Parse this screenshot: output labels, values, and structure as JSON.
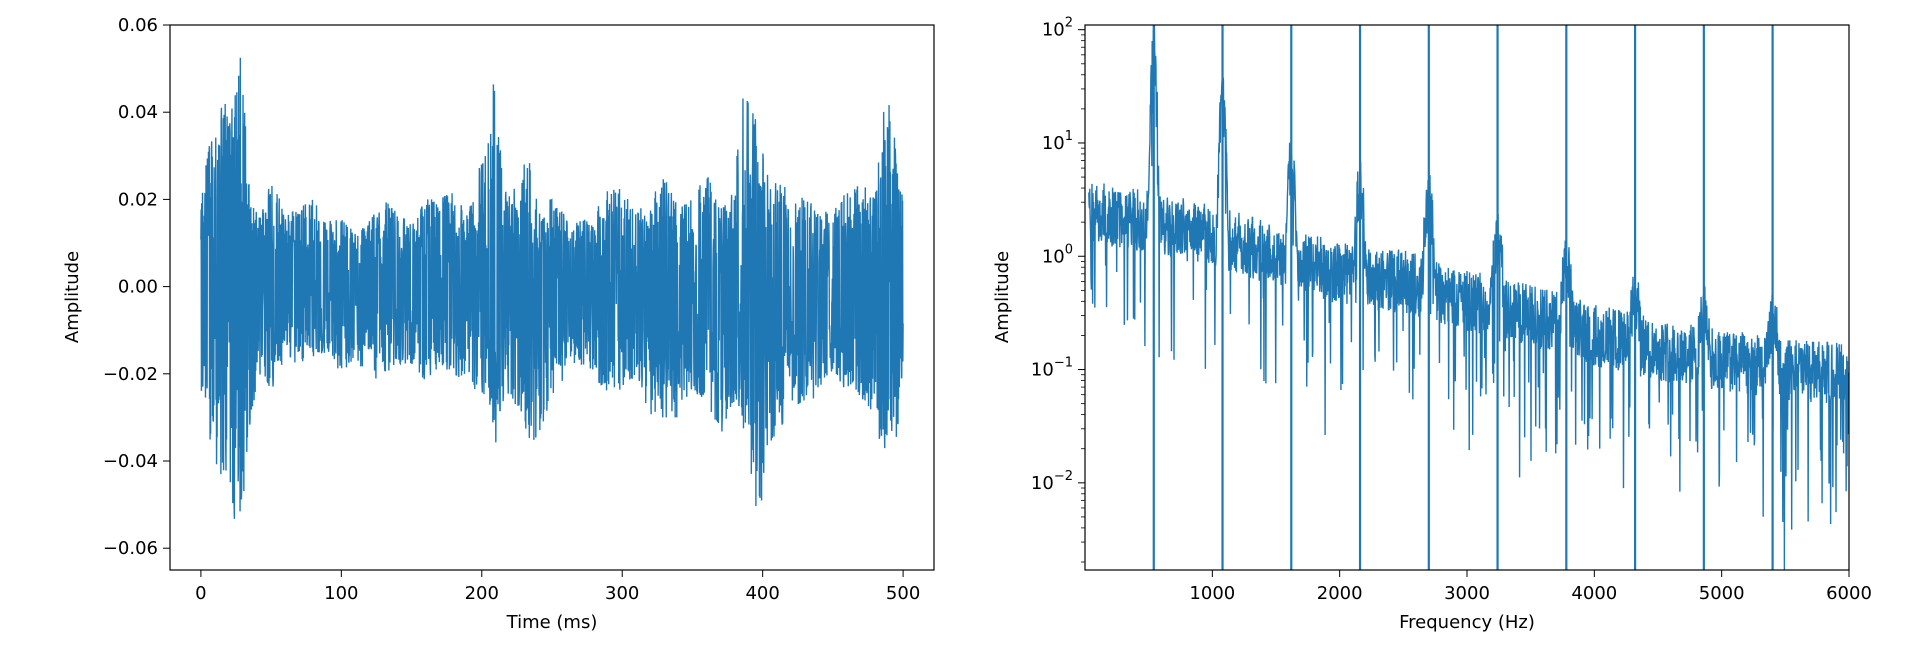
{
  "chart_data": [
    {
      "type": "line",
      "title": "",
      "xlabel": "Time (ms)",
      "ylabel": "Amplitude",
      "xlim": [
        -22,
        522
      ],
      "ylim": [
        -0.065,
        0.06
      ],
      "xticks": [
        0,
        100,
        200,
        300,
        400,
        500
      ],
      "xtick_labels": [
        "0",
        "100",
        "200",
        "300",
        "400",
        "500"
      ],
      "yticks": [
        -0.06,
        -0.04,
        -0.02,
        0.0,
        0.02,
        0.04,
        0.06
      ],
      "ytick_labels": [
        "−0.06",
        "−0.04",
        "−0.02",
        "0.00",
        "0.02",
        "0.04",
        "0.06"
      ],
      "grid": false,
      "color": "#1f77b4",
      "envelope": {
        "x": [
          0,
          5,
          10,
          15,
          20,
          25,
          28,
          30,
          33,
          36,
          40,
          45,
          50,
          60,
          70,
          80,
          90,
          100,
          110,
          120,
          130,
          140,
          150,
          160,
          170,
          180,
          190,
          200,
          205,
          210,
          215,
          220,
          230,
          235,
          240,
          245,
          250,
          260,
          270,
          280,
          290,
          300,
          310,
          320,
          330,
          340,
          350,
          360,
          370,
          380,
          385,
          390,
          395,
          398,
          402,
          410,
          420,
          430,
          440,
          450,
          460,
          470,
          480,
          485,
          490,
          495,
          500
        ],
        "upper": [
          0.022,
          0.03,
          0.042,
          0.044,
          0.045,
          0.05,
          0.054,
          0.046,
          0.03,
          0.02,
          0.018,
          0.02,
          0.026,
          0.016,
          0.018,
          0.02,
          0.015,
          0.016,
          0.012,
          0.015,
          0.02,
          0.017,
          0.014,
          0.02,
          0.02,
          0.022,
          0.016,
          0.03,
          0.036,
          0.052,
          0.03,
          0.02,
          0.028,
          0.03,
          0.018,
          0.02,
          0.02,
          0.016,
          0.015,
          0.016,
          0.024,
          0.022,
          0.017,
          0.02,
          0.025,
          0.018,
          0.02,
          0.026,
          0.018,
          0.022,
          0.045,
          0.042,
          0.04,
          0.036,
          0.026,
          0.024,
          0.022,
          0.02,
          0.018,
          0.017,
          0.022,
          0.024,
          0.02,
          0.04,
          0.042,
          0.032,
          0.02
        ],
        "lower": [
          -0.025,
          -0.035,
          -0.04,
          -0.045,
          -0.05,
          -0.058,
          -0.058,
          -0.05,
          -0.04,
          -0.03,
          -0.022,
          -0.02,
          -0.024,
          -0.016,
          -0.018,
          -0.016,
          -0.015,
          -0.02,
          -0.016,
          -0.022,
          -0.02,
          -0.018,
          -0.018,
          -0.022,
          -0.018,
          -0.02,
          -0.022,
          -0.025,
          -0.026,
          -0.037,
          -0.028,
          -0.024,
          -0.032,
          -0.036,
          -0.034,
          -0.03,
          -0.026,
          -0.02,
          -0.018,
          -0.02,
          -0.026,
          -0.024,
          -0.02,
          -0.03,
          -0.03,
          -0.03,
          -0.024,
          -0.026,
          -0.034,
          -0.026,
          -0.03,
          -0.04,
          -0.05,
          -0.055,
          -0.04,
          -0.034,
          -0.028,
          -0.026,
          -0.026,
          -0.02,
          -0.024,
          -0.026,
          -0.03,
          -0.038,
          -0.039,
          -0.035,
          -0.03
        ]
      }
    },
    {
      "type": "line",
      "title": "",
      "xlabel": "Frequency (Hz)",
      "ylabel": "Amplitude",
      "xlim": [
        0,
        6000
      ],
      "ylim": [
        0.0017,
        110
      ],
      "yscale": "log",
      "xticks": [
        1000,
        2000,
        3000,
        4000,
        5000,
        6000
      ],
      "xtick_labels": [
        "1000",
        "2000",
        "3000",
        "4000",
        "5000",
        "6000"
      ],
      "yticks": [
        0.01,
        0.1,
        1,
        10,
        100
      ],
      "ytick_bases": [
        "10",
        "10",
        "10",
        "10",
        "10"
      ],
      "ytick_exponents": [
        "−2",
        "−1",
        "0",
        "1",
        "2"
      ],
      "grid": false,
      "color": "#1f77b4",
      "vertical_lines": [
        540,
        1080,
        1620,
        2160,
        2700,
        3240,
        3780,
        4320,
        4860,
        5400
      ],
      "harmonic_peaks": [
        {
          "f": 540,
          "amp": 75
        },
        {
          "f": 1080,
          "amp": 22
        },
        {
          "f": 1620,
          "amp": 7
        },
        {
          "f": 2160,
          "amp": 4
        },
        {
          "f": 2700,
          "amp": 3.2
        },
        {
          "f": 3240,
          "amp": 1.5
        },
        {
          "f": 3780,
          "amp": 0.8
        },
        {
          "f": 4320,
          "amp": 0.4
        },
        {
          "f": 4860,
          "amp": 0.3
        },
        {
          "f": 5400,
          "amp": 0.25
        }
      ],
      "baseline": {
        "f": [
          0,
          500,
          1000,
          1500,
          2000,
          2500,
          3000,
          3500,
          4000,
          4500,
          5000,
          5500,
          6000
        ],
        "amp": [
          2.5,
          2.0,
          1.5,
          1.0,
          0.7,
          0.6,
          0.4,
          0.3,
          0.2,
          0.15,
          0.12,
          0.1,
          0.09
        ]
      }
    }
  ]
}
